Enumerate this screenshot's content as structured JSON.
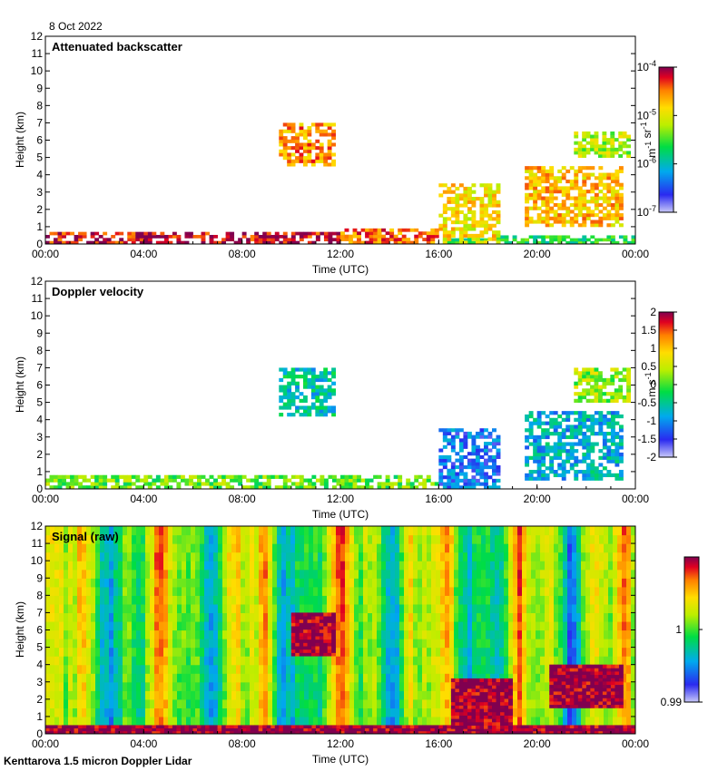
{
  "date": "8 Oct 2022",
  "footer": "Kenttarova 1.5 micron Doppler Lidar",
  "chart_data": [
    {
      "type": "heatmap",
      "title": "Attenuated backscatter",
      "xlabel": "Time (UTC)",
      "ylabel": "Height (km)",
      "xlim": [
        0,
        24
      ],
      "ylim": [
        0,
        12
      ],
      "xticks": [
        "00:00",
        "04:00",
        "08:00",
        "12:00",
        "16:00",
        "20:00",
        "00:00"
      ],
      "yticks": [
        "0",
        "1",
        "2",
        "3",
        "4",
        "5",
        "6",
        "7",
        "8",
        "9",
        "10",
        "11",
        "12"
      ],
      "colorbar": {
        "scale": "log",
        "range": [
          1e-07,
          0.0001
        ],
        "ticks": [
          {
            "base": "10",
            "exp": "-4"
          },
          {
            "base": "10",
            "exp": "-5"
          },
          {
            "base": "10",
            "exp": "-6"
          },
          {
            "base": "10",
            "exp": "-7"
          }
        ],
        "unit_parts": [
          {
            "t": "m",
            "s": ""
          },
          {
            "t": "-1",
            "s": "sup"
          },
          {
            "t": " sr",
            "s": ""
          },
          {
            "t": "-1",
            "s": "sup"
          }
        ]
      },
      "features": [
        {
          "t": [
            0,
            12
          ],
          "h": [
            0,
            0.7
          ],
          "level": 0.95
        },
        {
          "t": [
            12,
            16
          ],
          "h": [
            0,
            0.9
          ],
          "level": 0.85
        },
        {
          "t": [
            16,
            24
          ],
          "h": [
            0,
            0.5
          ],
          "level": 0.45
        },
        {
          "t": [
            9.5,
            11.8
          ],
          "h": [
            4.5,
            7
          ],
          "level": 0.8
        },
        {
          "t": [
            16,
            18.5
          ],
          "h": [
            0,
            3.5
          ],
          "level": 0.7
        },
        {
          "t": [
            19.5,
            23.5
          ],
          "h": [
            1,
            4.5
          ],
          "level": 0.75
        },
        {
          "t": [
            21.5,
            23.8
          ],
          "h": [
            5,
            6.5
          ],
          "level": 0.6
        }
      ]
    },
    {
      "type": "heatmap",
      "title": "Doppler velocity",
      "xlabel": "Time (UTC)",
      "ylabel": "Height (km)",
      "xlim": [
        0,
        24
      ],
      "ylim": [
        0,
        12
      ],
      "xticks": [
        "00:00",
        "04:00",
        "08:00",
        "12:00",
        "16:00",
        "20:00",
        "00:00"
      ],
      "yticks": [
        "0",
        "1",
        "2",
        "3",
        "4",
        "5",
        "6",
        "7",
        "8",
        "9",
        "10",
        "11",
        "12"
      ],
      "colorbar": {
        "scale": "linear",
        "range": [
          -2,
          2
        ],
        "ticks": [
          "2",
          "1.5",
          "1",
          "0.5",
          "0",
          "-0.5",
          "-1",
          "-1.5",
          "-2"
        ],
        "unit_parts": [
          {
            "t": "m",
            "s": ""
          },
          {
            "t": " s",
            "s": ""
          },
          {
            "t": "-1",
            "s": "sup"
          }
        ]
      },
      "features": [
        {
          "t": [
            0,
            16
          ],
          "h": [
            0,
            0.8
          ],
          "value": 0.1
        },
        {
          "t": [
            9.5,
            11.8
          ],
          "h": [
            4.2,
            7
          ],
          "value": -0.6
        },
        {
          "t": [
            16,
            18.5
          ],
          "h": [
            0,
            3.5
          ],
          "value": -1.2
        },
        {
          "t": [
            19.5,
            23.5
          ],
          "h": [
            0.5,
            4.5
          ],
          "value": -0.8
        },
        {
          "t": [
            21.5,
            23.8
          ],
          "h": [
            5,
            7
          ],
          "value": 0.3
        }
      ]
    },
    {
      "type": "heatmap",
      "title": "Signal (raw)",
      "xlabel": "Time (UTC)",
      "ylabel": "Height (km)",
      "xlim": [
        0,
        24
      ],
      "ylim": [
        0,
        12
      ],
      "xticks": [
        "00:00",
        "04:00",
        "08:00",
        "12:00",
        "16:00",
        "20:00",
        "00:00"
      ],
      "yticks": [
        "0",
        "1",
        "2",
        "3",
        "4",
        "5",
        "6",
        "7",
        "8",
        "9",
        "10",
        "11",
        "12"
      ],
      "colorbar": {
        "scale": "linear",
        "range": [
          0.99,
          1.01
        ],
        "ticks": [
          "1",
          "0.99"
        ],
        "unit_parts": []
      },
      "features": [
        {
          "t": [
            0,
            24
          ],
          "h": [
            0,
            0.5
          ],
          "value": 1.01
        },
        {
          "t": [
            16.5,
            19
          ],
          "h": [
            0.3,
            3.2
          ],
          "value": 1.01
        },
        {
          "t": [
            20.5,
            23.5
          ],
          "h": [
            1.5,
            4
          ],
          "value": 1.01
        },
        {
          "t": [
            10,
            11.8
          ],
          "h": [
            4.5,
            7
          ],
          "value": 1.01
        }
      ]
    }
  ]
}
